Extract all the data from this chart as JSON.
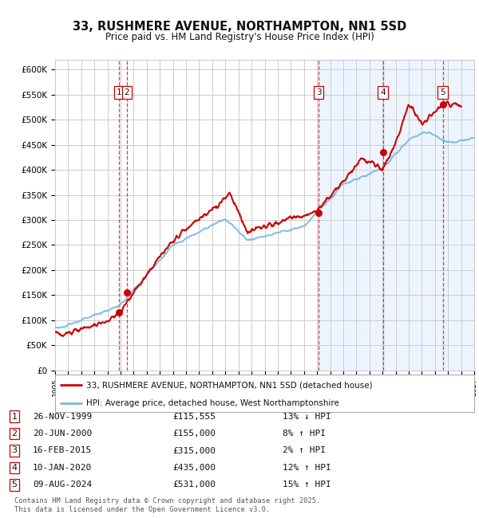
{
  "title": "33, RUSHMERE AVENUE, NORTHAMPTON, NN1 5SD",
  "subtitle": "Price paid vs. HM Land Registry's House Price Index (HPI)",
  "ylim": [
    0,
    620000
  ],
  "yticks": [
    0,
    50000,
    100000,
    150000,
    200000,
    250000,
    300000,
    350000,
    400000,
    450000,
    500000,
    550000,
    600000
  ],
  "ytick_labels": [
    "£0",
    "£50K",
    "£100K",
    "£150K",
    "£200K",
    "£250K",
    "£300K",
    "£350K",
    "£400K",
    "£450K",
    "£500K",
    "£550K",
    "£600K"
  ],
  "xlim_start": 1995.0,
  "xlim_end": 2027.0,
  "sale_dates": [
    1999.9,
    2000.47,
    2015.12,
    2020.03,
    2024.6
  ],
  "sale_prices": [
    115555,
    155000,
    315000,
    435000,
    531000
  ],
  "sale_labels": [
    "1",
    "2",
    "3",
    "4",
    "5"
  ],
  "sale_table": [
    [
      "1",
      "26-NOV-1999",
      "£115,555",
      "13% ↓ HPI"
    ],
    [
      "2",
      "20-JUN-2000",
      "£155,000",
      "8% ↑ HPI"
    ],
    [
      "3",
      "16-FEB-2015",
      "£315,000",
      "2% ↑ HPI"
    ],
    [
      "4",
      "10-JAN-2020",
      "£435,000",
      "12% ↑ HPI"
    ],
    [
      "5",
      "09-AUG-2024",
      "£531,000",
      "15% ↑ HPI"
    ]
  ],
  "legend_line1": "33, RUSHMERE AVENUE, NORTHAMPTON, NN1 5SD (detached house)",
  "legend_line2": "HPI: Average price, detached house, West Northamptonshire",
  "footer": "Contains HM Land Registry data © Crown copyright and database right 2025.\nThis data is licensed under the Open Government Licence v3.0.",
  "bg_color": "#ffffff",
  "grid_color": "#cccccc",
  "hpi_color": "#7ab8e0",
  "price_color": "#cc0000",
  "shaded_color": "#ddeeff",
  "shaded_start": 2015.0,
  "shaded_end": 2027.0
}
